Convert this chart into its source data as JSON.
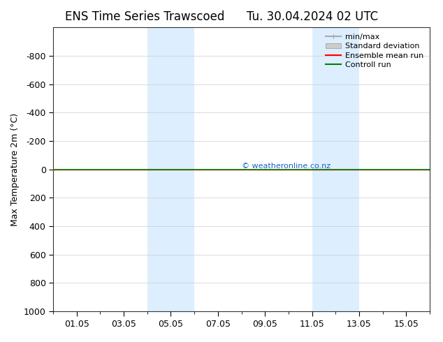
{
  "title_left": "ENS Time Series Trawscoed",
  "title_right": "Tu. 30.04.2024 02 UTC",
  "ylabel": "Max Temperature 2m (°C)",
  "ylim_bottom": -1000,
  "ylim_top": 1000,
  "yticks": [
    -800,
    -600,
    -400,
    -200,
    0,
    200,
    400,
    600,
    800,
    1000
  ],
  "xtick_labels": [
    "01.05",
    "03.05",
    "05.05",
    "07.05",
    "09.05",
    "11.05",
    "13.05",
    "15.05"
  ],
  "xtick_positions": [
    1,
    3,
    5,
    7,
    9,
    11,
    13,
    15
  ],
  "x_min": 0,
  "x_max": 16,
  "shaded_regions": [
    {
      "start": 4.0,
      "end": 6.0,
      "color": "#ddeeff"
    },
    {
      "start": 11.0,
      "end": 13.0,
      "color": "#ddeeff"
    }
  ],
  "control_run_color": "#008000",
  "ensemble_mean_color": "#ff0000",
  "line_y": 0,
  "watermark_text": "© weatheronline.co.nz",
  "watermark_color": "#1a5fcc",
  "legend_entries": [
    {
      "label": "min/max",
      "color": "#aaaaaa",
      "style": "minmax"
    },
    {
      "label": "Standard deviation",
      "color": "#cccccc",
      "style": "band"
    },
    {
      "label": "Ensemble mean run",
      "color": "#ff0000",
      "style": "line"
    },
    {
      "label": "Controll run",
      "color": "#008000",
      "style": "line"
    }
  ],
  "background_color": "#ffffff",
  "grid_color": "#cccccc",
  "title_fontsize": 12,
  "axis_label_fontsize": 9,
  "tick_fontsize": 9,
  "legend_fontsize": 8
}
